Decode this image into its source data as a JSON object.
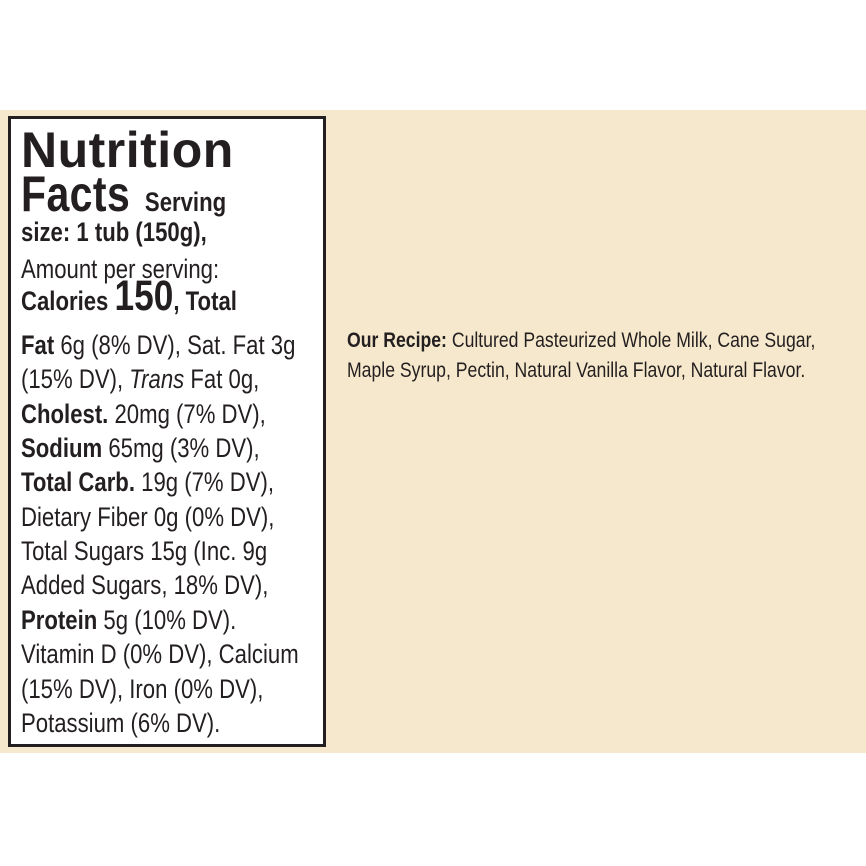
{
  "nutrition": {
    "title_1": "Nutrition",
    "title_2": "Facts",
    "serving_1": "Serving",
    "serving_2": "size: 1 tub (150g),",
    "amount": "Amount per serving:",
    "calories_label": "Calories",
    "calories_value": "150",
    "total_label": ", Total",
    "fat_label": "Fat",
    "fat_text": " 6g (8% DV), Sat. Fat 3g",
    "satfat_dv": "(15% DV), ",
    "trans_label": "Trans",
    "trans_text": " Fat 0g,",
    "cholest_label": "Cholest.",
    "cholest_text": " 20mg (7% DV),",
    "sodium_label": "Sodium",
    "sodium_text": " 65mg (3% DV),",
    "carb_label": "Total Carb.",
    "carb_text": " 19g (7% DV),",
    "fiber": "Dietary Fiber 0g (0% DV),",
    "sugars": "Total Sugars 15g (Inc. 9g",
    "added": "Added Sugars, 18% DV),",
    "protein_label": "Protein",
    "protein_text": " 5g (10% DV).",
    "vitd": "Vitamin D (0% DV), Calcium",
    "calcium_iron": "(15% DV), Iron (0% DV),",
    "potassium": "Potassium (6% DV)."
  },
  "recipe": {
    "label": "Our Recipe:",
    "line_1": " Cultured Pasteurized Whole Milk, Cane Sugar,",
    "line_2": "Maple Syrup, Pectin, Natural Vanilla Flavor, Natural Flavor."
  },
  "colors": {
    "background_band": "#f6e8cc",
    "text": "#231f20"
  }
}
